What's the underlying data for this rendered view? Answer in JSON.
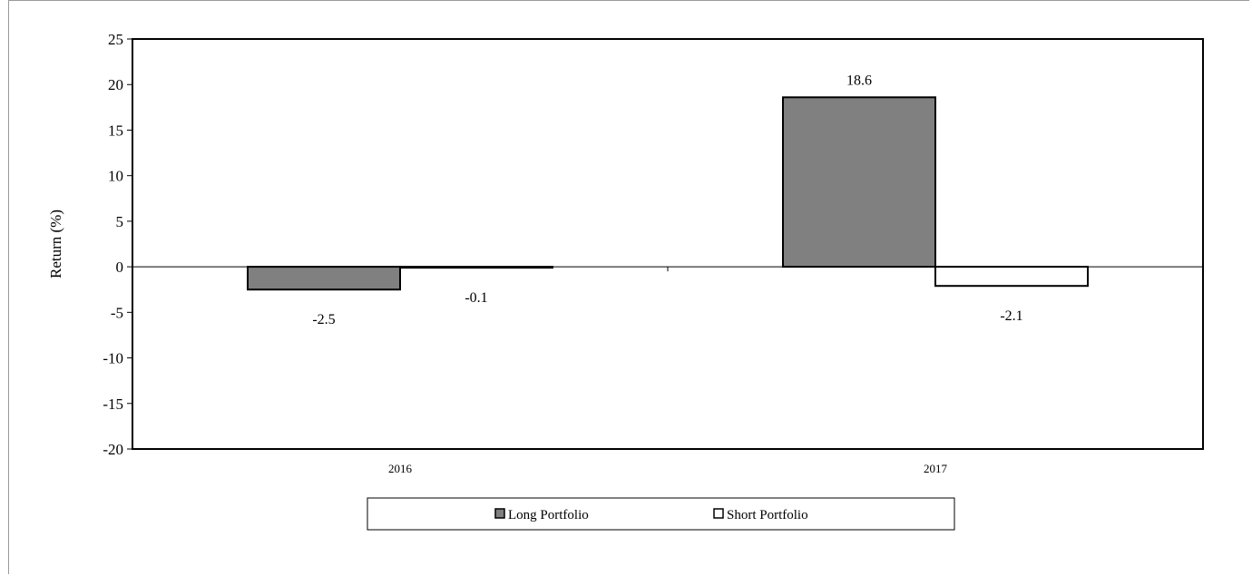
{
  "chart_data": {
    "type": "bar",
    "categories": [
      "2016",
      "2017"
    ],
    "series": [
      {
        "name": "Long Portfolio",
        "values": [
          -2.5,
          18.6
        ],
        "labels": [
          "-2.5",
          "18.6"
        ],
        "color": "#808080"
      },
      {
        "name": "Short Portfolio",
        "values": [
          -0.1,
          -2.1
        ],
        "labels": [
          "-0.1",
          "-2.1"
        ],
        "color": "#ffffff"
      }
    ],
    "title": "",
    "xlabel": "",
    "ylabel": "Return (%)",
    "ylim": [
      -20,
      25
    ],
    "yticks": [
      25,
      20,
      15,
      10,
      5,
      0,
      -5,
      -10,
      -15,
      -20
    ],
    "grid": false,
    "legend": "bottom"
  }
}
